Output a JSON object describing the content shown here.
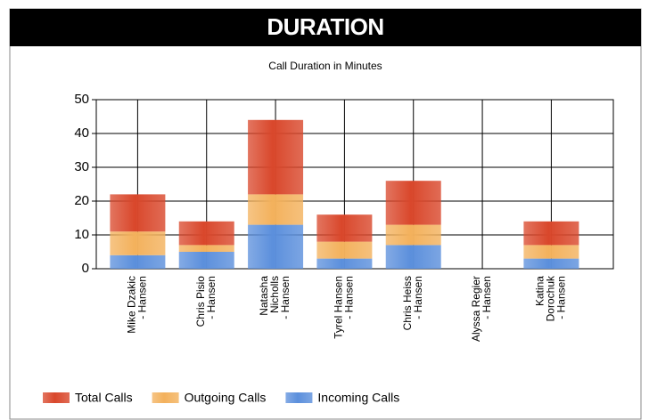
{
  "header": {
    "title": "DURATION"
  },
  "chart_data": {
    "type": "stacked_bar",
    "title": "Call Duration in Minutes",
    "categories": [
      [
        "Mike Dzakic",
        "- Hansen"
      ],
      [
        "Chris Pisio",
        "- Hansen"
      ],
      [
        "Natasha",
        "Nicholls",
        "- Hansen"
      ],
      [
        "Tyrel Hansen",
        "- Hansen"
      ],
      [
        "Chris Heiss",
        "- Hansen"
      ],
      [
        "Alyssa Regier",
        "- Hansen"
      ],
      [
        "Katina",
        "Dorochuk",
        "- Hansen"
      ]
    ],
    "series": [
      {
        "name": "Incoming Calls",
        "color": "#5b8fdc",
        "values": [
          4,
          5,
          13,
          3,
          7,
          0,
          3
        ]
      },
      {
        "name": "Outgoing Calls",
        "color": "#f3b15c",
        "values": [
          7,
          2,
          9,
          5,
          6,
          0,
          4
        ]
      },
      {
        "name": "Total Calls",
        "color": "#d9472b",
        "values": [
          11,
          7,
          22,
          8,
          13,
          0,
          7
        ]
      }
    ],
    "legend_order": [
      2,
      1,
      0
    ],
    "ylim": [
      0,
      50
    ],
    "yticks": [
      0,
      10,
      20,
      30,
      40,
      50
    ],
    "grid": true,
    "legend": "bottom"
  }
}
